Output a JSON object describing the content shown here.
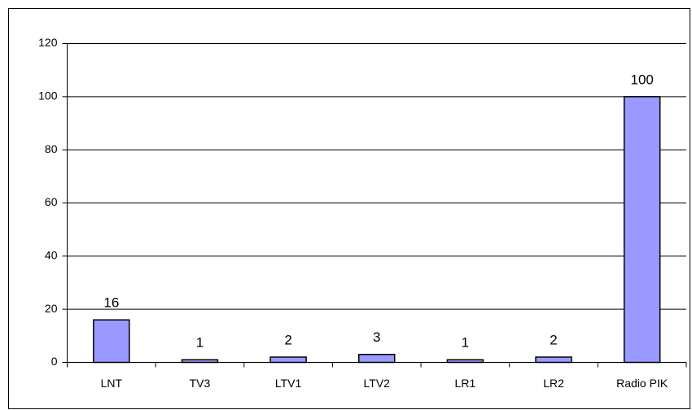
{
  "chart_data": {
    "type": "bar",
    "categories": [
      "LNT",
      "TV3",
      "LTV1",
      "LTV2",
      "LR1",
      "LR2",
      "Radio PIK"
    ],
    "values": [
      16,
      1,
      2,
      3,
      1,
      2,
      100
    ],
    "color": "#9999ff",
    "ylim": [
      0,
      120
    ],
    "yticks": [
      0,
      20,
      40,
      60,
      80,
      100,
      120
    ],
    "grid": true
  }
}
